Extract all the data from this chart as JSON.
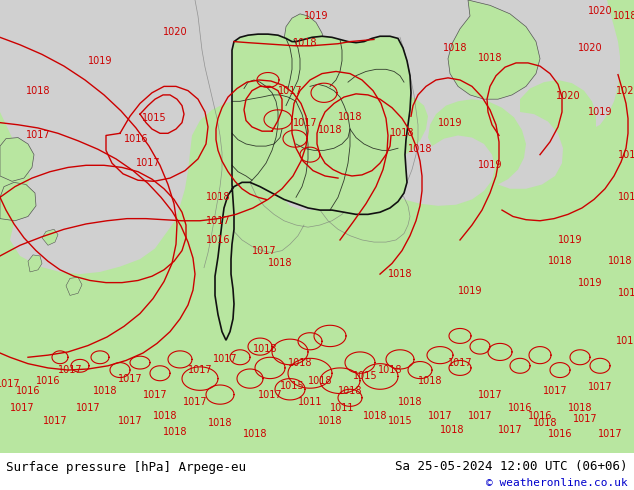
{
  "title_left": "Surface pressure [hPa] Arpege-eu",
  "title_right": "Sa 25-05-2024 12:00 UTC (06+06)",
  "copyright": "© weatheronline.co.uk",
  "bg_color_sea": "#d0d0d0",
  "land_color": "#b8e6a0",
  "border_color_country": "#555555",
  "border_color_de": "#111111",
  "contour_color": "#cc0000",
  "text_color": "#000000",
  "footer_bg": "#ffffff",
  "font_size_footer": 9,
  "font_size_contour": 7
}
